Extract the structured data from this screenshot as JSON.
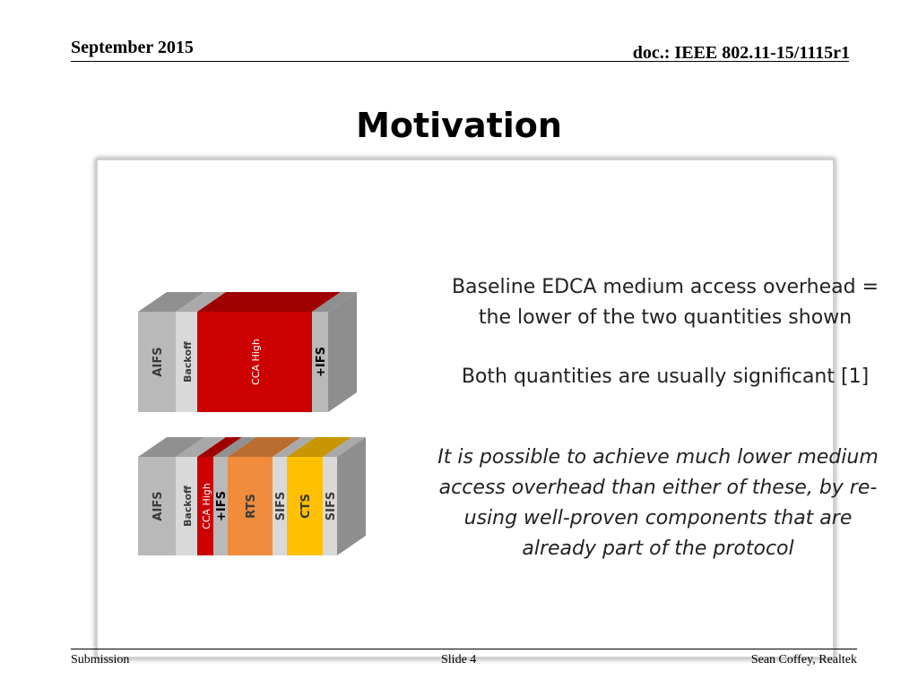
{
  "header": {
    "date": "September 2015",
    "doc_id": "doc.: IEEE 802.11-15/1115r1"
  },
  "slide": {
    "title": "Motivation",
    "paragraphs": [
      "Baseline EDCA medium access overhead = the lower of the two quantities shown",
      "Both quantities are usually significant [1]",
      "It is possible to achieve much lower medium access overhead than either of these, by re-using well-proven components that are already part of the protocol"
    ]
  },
  "diagram": {
    "colors": {
      "grey": "#b9b9b9",
      "light_grey": "#d9d9d9",
      "red": "#cc0000",
      "orange": "#f08c3c",
      "yellow": "#ffc000"
    },
    "top_stack": [
      {
        "label": "AIFS",
        "color": "grey"
      },
      {
        "label": "Backoff",
        "color": "light_grey"
      },
      {
        "label": "CCA High",
        "color": "red"
      },
      {
        "label": "+IFS",
        "color": "grey"
      }
    ],
    "bottom_stack": [
      {
        "label": "AIFS",
        "color": "grey"
      },
      {
        "label": "Backoff",
        "color": "light_grey"
      },
      {
        "label": "CCA High",
        "color": "red"
      },
      {
        "label": "+IFS",
        "color": "grey"
      },
      {
        "label": "RTS",
        "color": "orange"
      },
      {
        "label": "SIFS",
        "color": "light_grey"
      },
      {
        "label": "CTS",
        "color": "yellow"
      },
      {
        "label": "SIFS",
        "color": "light_grey"
      }
    ]
  },
  "footer": {
    "left": "Submission",
    "center": "Slide 4",
    "right": "Sean Coffey, Realtek"
  }
}
